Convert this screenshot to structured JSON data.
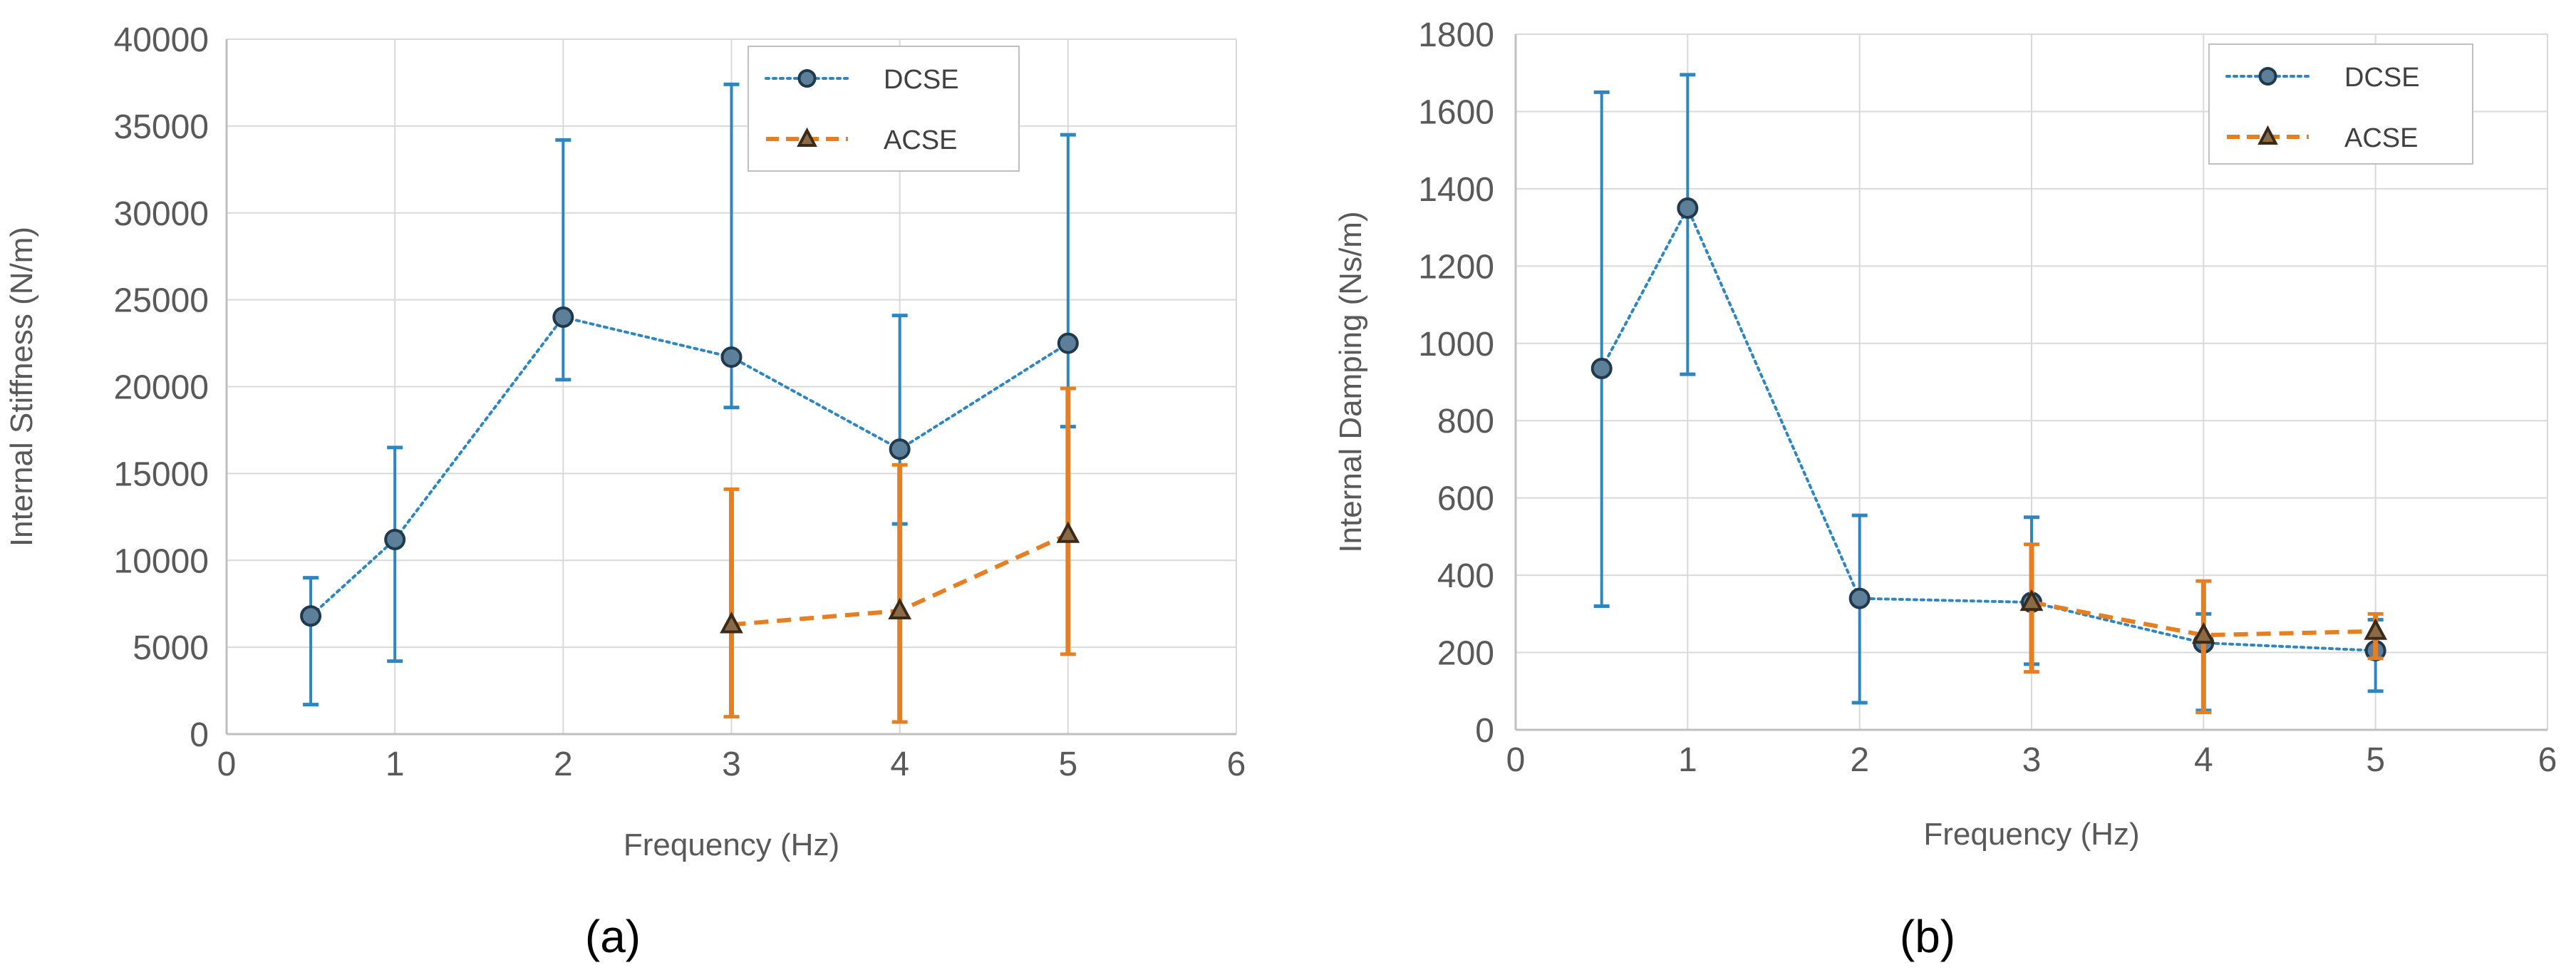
{
  "figure": {
    "panel_labels": [
      "(a)",
      "(b)"
    ]
  },
  "colors": {
    "dcse": "#2E86C1",
    "acse": "#E67E22",
    "grid": "#D9D9D9",
    "text": "#595959",
    "marker_dcse": "#5D7F99",
    "marker_acse": "#8B6A46"
  },
  "chart_data": [
    {
      "type": "line",
      "panel": "(a)",
      "title": "",
      "xlabel": "Frequency (Hz)",
      "ylabel": "Internal Stiffness (N/m)",
      "xlim": [
        0,
        6
      ],
      "ylim": [
        0,
        40000
      ],
      "xticks": [
        0,
        1,
        2,
        3,
        4,
        5,
        6
      ],
      "yticks": [
        0,
        5000,
        10000,
        15000,
        20000,
        25000,
        30000,
        35000,
        40000
      ],
      "grid": true,
      "legend": "top-right",
      "series": [
        {
          "name": "DCSE",
          "marker": "circle",
          "style": "dotted",
          "x": [
            0.5,
            1,
            2,
            3,
            4,
            5
          ],
          "y": [
            6800,
            11200,
            24000,
            21700,
            16400,
            22500
          ],
          "err_low": [
            1700,
            4200,
            20400,
            18800,
            12100,
            17700
          ],
          "err_high": [
            9000,
            16500,
            34200,
            37400,
            24100,
            34500
          ]
        },
        {
          "name": "ACSE",
          "marker": "triangle",
          "style": "dashed",
          "x": [
            3,
            4,
            5
          ],
          "y": [
            6300,
            7100,
            11500
          ],
          "err_low": [
            1000,
            700,
            4600
          ],
          "err_high": [
            14100,
            15500,
            19900
          ]
        }
      ]
    },
    {
      "type": "line",
      "panel": "(b)",
      "title": "",
      "xlabel": "Frequency (Hz)",
      "ylabel": "Internal Damping (Ns/m)",
      "xlim": [
        0,
        6
      ],
      "ylim": [
        0,
        1800
      ],
      "xticks": [
        0,
        1,
        2,
        3,
        4,
        5,
        6
      ],
      "yticks": [
        0,
        200,
        400,
        600,
        800,
        1000,
        1200,
        1400,
        1600,
        1800
      ],
      "grid": true,
      "legend": "top-right",
      "series": [
        {
          "name": "DCSE",
          "marker": "circle",
          "style": "dotted",
          "x": [
            0.5,
            1,
            2,
            3,
            4,
            5
          ],
          "y": [
            935,
            1350,
            340,
            330,
            225,
            205
          ],
          "err_low": [
            320,
            920,
            70,
            170,
            50,
            100
          ],
          "err_high": [
            1650,
            1695,
            555,
            550,
            300,
            285
          ]
        },
        {
          "name": "ACSE",
          "marker": "triangle",
          "style": "dashed",
          "x": [
            3,
            4,
            5
          ],
          "y": [
            330,
            245,
            255
          ],
          "err_low": [
            150,
            45,
            185
          ],
          "err_high": [
            480,
            385,
            300
          ]
        }
      ]
    }
  ]
}
